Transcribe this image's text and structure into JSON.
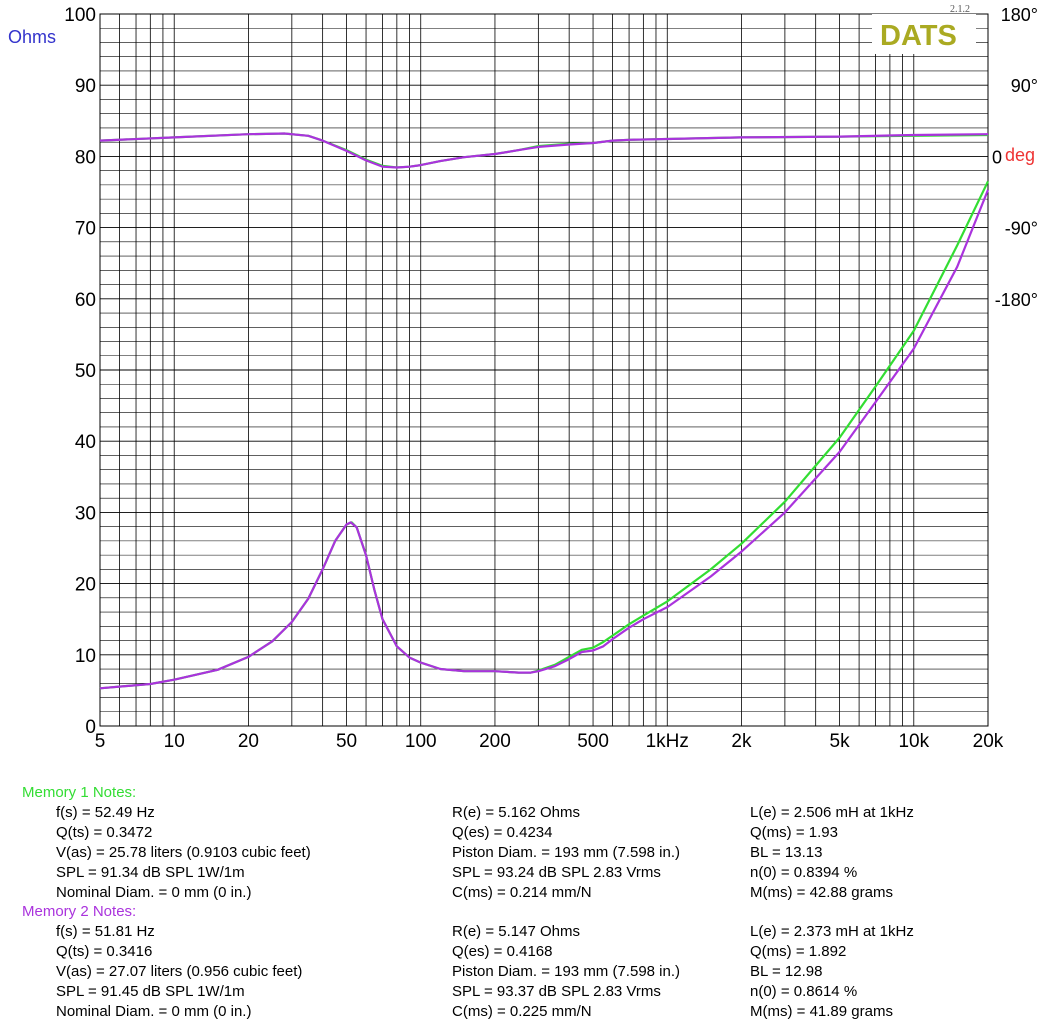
{
  "chart_data": {
    "type": "line",
    "brand": "DATS",
    "version": "2.1.2",
    "y_left_unit": "Ohms",
    "y_right_unit": "deg",
    "x_scale": "log",
    "xlim": [
      5,
      20000
    ],
    "ylim": [
      0,
      100
    ],
    "y_ticks": [
      "100",
      "90",
      "80",
      "70",
      "60",
      "50",
      "40",
      "30",
      "20",
      "10",
      "0"
    ],
    "y_right_ticks": [
      "180°",
      "90°",
      "0",
      "-90°",
      "-180°"
    ],
    "y_right_values": [
      180,
      90,
      0,
      -90,
      -180
    ],
    "x_ticks": [
      "5",
      "10",
      "20",
      "50",
      "100",
      "200",
      "500",
      "1kHz",
      "2k",
      "5k",
      "10k",
      "20k"
    ],
    "x_tick_values": [
      5,
      10,
      20,
      50,
      100,
      200,
      500,
      1000,
      2000,
      5000,
      10000,
      20000
    ],
    "grid": true,
    "colors": {
      "memory1": "#33dd33",
      "memory2": "#aa33dd",
      "trace": "#6633cc",
      "brand": "#aaaa22",
      "ohms_label": "#3333cc",
      "deg_label": "#ee3333"
    },
    "series": [
      {
        "name": "Memory 1",
        "impedance_x": [
          5,
          8,
          10,
          15,
          20,
          25,
          30,
          35,
          40,
          45,
          50,
          52.5,
          55,
          60,
          65,
          70,
          80,
          90,
          100,
          120,
          150,
          200,
          250,
          280,
          300,
          350,
          400,
          450,
          500,
          550,
          600,
          700,
          800,
          1000,
          1500,
          2000,
          3000,
          5000,
          7000,
          10000,
          15000,
          20000
        ],
        "impedance_y": [
          5.3,
          5.9,
          6.5,
          7.9,
          9.7,
          11.9,
          14.6,
          17.9,
          22.0,
          26.0,
          28.3,
          28.6,
          27.9,
          24.0,
          19.0,
          15.0,
          11.2,
          9.6,
          8.9,
          8.0,
          7.7,
          7.7,
          7.5,
          7.5,
          7.8,
          8.6,
          9.7,
          10.7,
          11.0,
          11.8,
          12.7,
          14.3,
          15.5,
          17.5,
          22.0,
          25.6,
          31.5,
          40.5,
          47.7,
          55.5,
          67.5,
          76.5
        ],
        "phase_x": [
          5,
          10,
          20,
          28,
          35,
          40,
          50,
          60,
          70,
          80,
          90,
          100,
          120,
          150,
          200,
          250,
          300,
          400,
          500,
          600,
          700,
          1000,
          2000,
          5000,
          10000,
          20000
        ],
        "phase_y": [
          20,
          24,
          28,
          29,
          26,
          20,
          8,
          -4,
          -12,
          -14,
          -13,
          -11,
          -6,
          -1,
          3,
          8,
          13,
          16,
          17,
          20,
          21,
          22,
          24,
          25,
          26,
          27
        ]
      },
      {
        "name": "Memory 2",
        "impedance_x": [
          5,
          8,
          10,
          15,
          20,
          25,
          30,
          35,
          40,
          45,
          50,
          52,
          55,
          60,
          65,
          70,
          80,
          90,
          100,
          120,
          150,
          200,
          250,
          280,
          300,
          350,
          400,
          450,
          500,
          550,
          600,
          700,
          800,
          1000,
          1500,
          2000,
          3000,
          5000,
          7000,
          10000,
          15000,
          20000
        ],
        "impedance_y": [
          5.3,
          5.9,
          6.5,
          7.9,
          9.7,
          11.9,
          14.6,
          17.9,
          22.0,
          26.0,
          28.3,
          28.6,
          27.9,
          24.0,
          19.0,
          15.0,
          11.2,
          9.6,
          8.9,
          8.0,
          7.7,
          7.7,
          7.5,
          7.5,
          7.7,
          8.4,
          9.4,
          10.4,
          10.6,
          11.2,
          12.2,
          13.8,
          15.0,
          16.7,
          21.0,
          24.5,
          30.0,
          38.5,
          45.5,
          53.0,
          64.5,
          75.3
        ],
        "phase_x": [
          5,
          10,
          20,
          28,
          35,
          40,
          50,
          60,
          70,
          80,
          90,
          100,
          120,
          150,
          200,
          250,
          300,
          400,
          500,
          600,
          700,
          1000,
          2000,
          5000,
          10000,
          20000
        ],
        "phase_y": [
          20,
          24,
          28,
          29,
          26,
          20,
          7,
          -5,
          -13,
          -14,
          -13,
          -11,
          -6,
          -1,
          3,
          8,
          12,
          15,
          17,
          20,
          21,
          22,
          24,
          25,
          27,
          28
        ]
      }
    ]
  },
  "notes": [
    {
      "header": "Memory 1 Notes:",
      "rows": [
        [
          "f(s) = 52.49 Hz",
          "R(e) = 5.162 Ohms",
          "L(e) = 2.506 mH at 1kHz"
        ],
        [
          "Q(ts) = 0.3472",
          "Q(es) = 0.4234",
          "Q(ms) = 1.93"
        ],
        [
          "V(as) = 25.78 liters  (0.9103 cubic feet)",
          "Piston Diam. = 193 mm (7.598 in.)",
          "BL = 13.13"
        ],
        [
          "SPL = 91.34 dB SPL 1W/1m",
          "SPL = 93.24 dB SPL 2.83 Vrms",
          "n(0) = 0.8394 %"
        ],
        [
          "Nominal Diam. = 0 mm (0 in.)",
          "C(ms) = 0.214 mm/N",
          "M(ms) = 42.88 grams"
        ]
      ]
    },
    {
      "header": "Memory 2 Notes:",
      "rows": [
        [
          "f(s) = 51.81 Hz",
          "R(e) = 5.147 Ohms",
          "L(e) = 2.373 mH at 1kHz"
        ],
        [
          "Q(ts) = 0.3416",
          "Q(es) = 0.4168",
          "Q(ms) = 1.892"
        ],
        [
          "V(as) = 27.07 liters  (0.956 cubic feet)",
          "Piston Diam. = 193 mm (7.598 in.)",
          "BL = 12.98"
        ],
        [
          "SPL = 91.45 dB SPL 1W/1m",
          "SPL = 93.37 dB SPL 2.83 Vrms",
          "n(0) = 0.8614 %"
        ],
        [
          "Nominal Diam. = 0 mm (0 in.)",
          "C(ms) = 0.225 mm/N",
          "M(ms) = 41.89 grams"
        ]
      ]
    }
  ]
}
